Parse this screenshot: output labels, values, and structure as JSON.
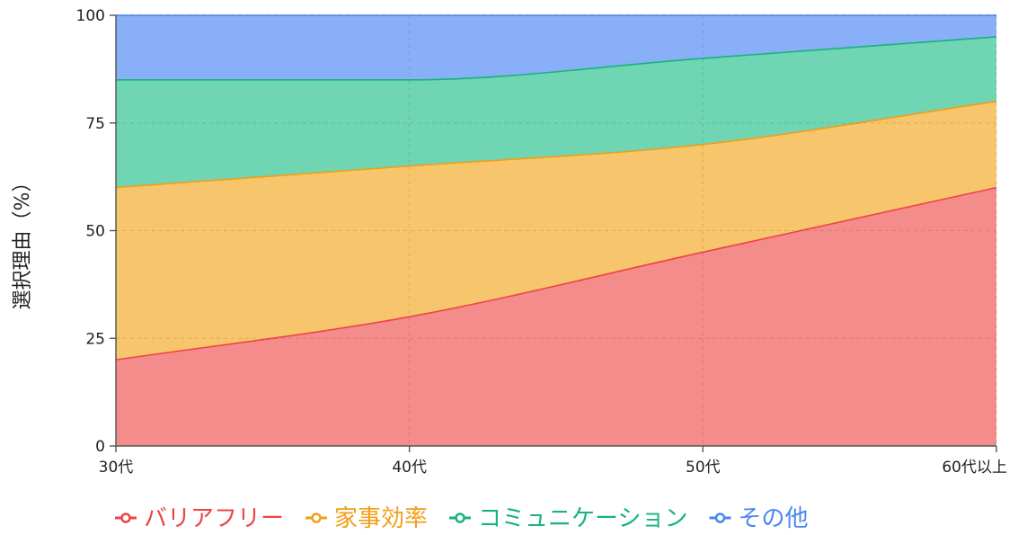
{
  "chart_data": {
    "type": "area",
    "stacked": true,
    "categories": [
      "30代",
      "40代",
      "50代",
      "60代以上"
    ],
    "ylabel": "選択理由（%）",
    "ylim": [
      0,
      100
    ],
    "yticks": [
      0,
      25,
      50,
      75,
      100
    ],
    "grid": true,
    "legend_position": "bottom",
    "series": [
      {
        "name": "バリアフリー",
        "values": [
          20,
          30,
          45,
          60
        ],
        "color": "#ee4444",
        "fill": "#f48c8c"
      },
      {
        "name": "家事効率",
        "values": [
          40,
          35,
          25,
          20
        ],
        "color": "#f29e16",
        "fill": "#f7c56c"
      },
      {
        "name": "コミュニケーション",
        "values": [
          25,
          20,
          20,
          15
        ],
        "color": "#16b47c",
        "fill": "#6fd5b3"
      },
      {
        "name": "その他",
        "values": [
          15,
          15,
          10,
          5
        ],
        "color": "#4a86f0",
        "fill": "#88aff7"
      }
    ]
  }
}
